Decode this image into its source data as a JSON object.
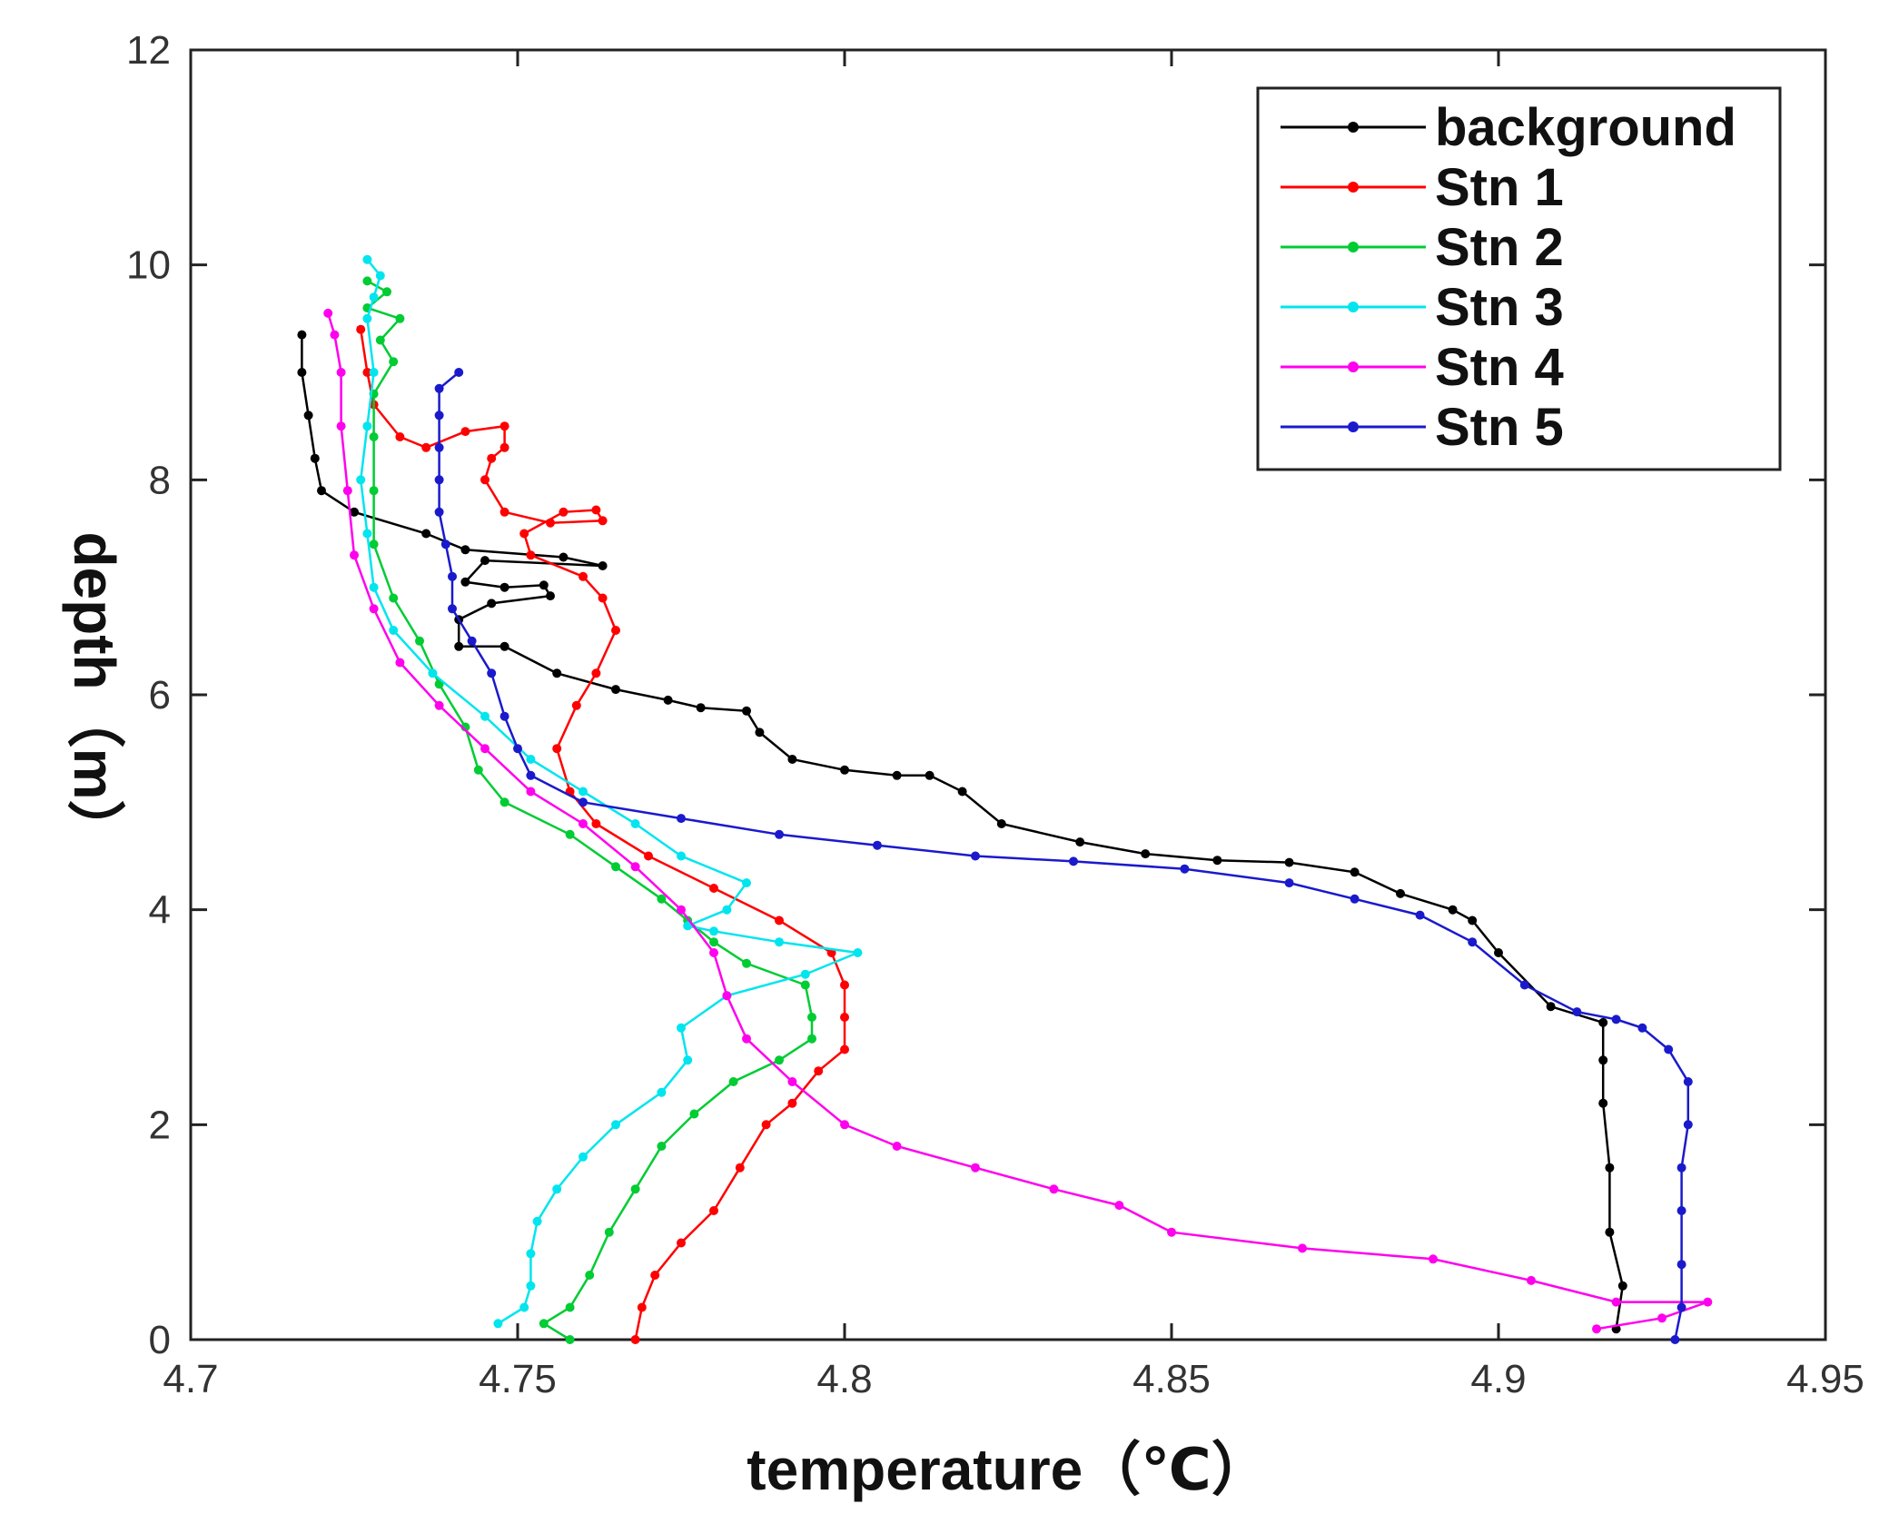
{
  "chart_data": {
    "type": "line",
    "xlabel": "temperature（℃）",
    "ylabel": "depth（m）",
    "xlim": [
      4.7,
      4.95
    ],
    "ylim": [
      0,
      12
    ],
    "xticks": [
      "4.7",
      "4.75",
      "4.8",
      "4.85",
      "4.9",
      "4.95"
    ],
    "yticks": [
      "0",
      "2",
      "4",
      "6",
      "8",
      "10",
      "12"
    ],
    "grid": false,
    "legend_position": "top-right",
    "series": [
      {
        "name": "background",
        "color": "#000000",
        "points": [
          [
            4.918,
            0.1
          ],
          [
            4.919,
            0.5
          ],
          [
            4.917,
            1.0
          ],
          [
            4.917,
            1.6
          ],
          [
            4.916,
            2.2
          ],
          [
            4.916,
            2.6
          ],
          [
            4.916,
            2.95
          ],
          [
            4.908,
            3.1
          ],
          [
            4.9,
            3.6
          ],
          [
            4.896,
            3.9
          ],
          [
            4.893,
            4.0
          ],
          [
            4.885,
            4.15
          ],
          [
            4.878,
            4.35
          ],
          [
            4.868,
            4.44
          ],
          [
            4.857,
            4.46
          ],
          [
            4.846,
            4.52
          ],
          [
            4.836,
            4.63
          ],
          [
            4.824,
            4.8
          ],
          [
            4.818,
            5.1
          ],
          [
            4.813,
            5.25
          ],
          [
            4.808,
            5.25
          ],
          [
            4.8,
            5.3
          ],
          [
            4.792,
            5.4
          ],
          [
            4.787,
            5.65
          ],
          [
            4.785,
            5.85
          ],
          [
            4.778,
            5.88
          ],
          [
            4.773,
            5.95
          ],
          [
            4.765,
            6.05
          ],
          [
            4.756,
            6.2
          ],
          [
            4.748,
            6.45
          ],
          [
            4.741,
            6.45
          ],
          [
            4.741,
            6.7
          ],
          [
            4.746,
            6.85
          ],
          [
            4.755,
            6.92
          ],
          [
            4.754,
            7.02
          ],
          [
            4.748,
            7.0
          ],
          [
            4.742,
            7.05
          ],
          [
            4.745,
            7.25
          ],
          [
            4.763,
            7.2
          ],
          [
            4.757,
            7.28
          ],
          [
            4.742,
            7.35
          ],
          [
            4.736,
            7.5
          ],
          [
            4.725,
            7.7
          ],
          [
            4.72,
            7.9
          ],
          [
            4.719,
            8.2
          ],
          [
            4.718,
            8.6
          ],
          [
            4.717,
            9.0
          ],
          [
            4.717,
            9.35
          ]
        ]
      },
      {
        "name": "Stn 1",
        "color": "#ff0000",
        "points": [
          [
            4.768,
            0.0
          ],
          [
            4.769,
            0.3
          ],
          [
            4.771,
            0.6
          ],
          [
            4.775,
            0.9
          ],
          [
            4.78,
            1.2
          ],
          [
            4.784,
            1.6
          ],
          [
            4.788,
            2.0
          ],
          [
            4.792,
            2.2
          ],
          [
            4.796,
            2.5
          ],
          [
            4.8,
            2.7
          ],
          [
            4.8,
            3.0
          ],
          [
            4.8,
            3.3
          ],
          [
            4.798,
            3.6
          ],
          [
            4.79,
            3.9
          ],
          [
            4.78,
            4.2
          ],
          [
            4.77,
            4.5
          ],
          [
            4.762,
            4.8
          ],
          [
            4.758,
            5.1
          ],
          [
            4.756,
            5.5
          ],
          [
            4.759,
            5.9
          ],
          [
            4.762,
            6.2
          ],
          [
            4.765,
            6.6
          ],
          [
            4.763,
            6.9
          ],
          [
            4.76,
            7.1
          ],
          [
            4.752,
            7.3
          ],
          [
            4.751,
            7.5
          ],
          [
            4.757,
            7.7
          ],
          [
            4.762,
            7.72
          ],
          [
            4.763,
            7.62
          ],
          [
            4.755,
            7.6
          ],
          [
            4.748,
            7.7
          ],
          [
            4.745,
            8.0
          ],
          [
            4.746,
            8.2
          ],
          [
            4.748,
            8.3
          ],
          [
            4.748,
            8.5
          ],
          [
            4.742,
            8.45
          ],
          [
            4.736,
            8.3
          ],
          [
            4.732,
            8.4
          ],
          [
            4.728,
            8.7
          ],
          [
            4.727,
            9.0
          ],
          [
            4.726,
            9.4
          ]
        ]
      },
      {
        "name": "Stn 2",
        "color": "#00cc33",
        "points": [
          [
            4.758,
            0.0
          ],
          [
            4.754,
            0.15
          ],
          [
            4.758,
            0.3
          ],
          [
            4.761,
            0.6
          ],
          [
            4.764,
            1.0
          ],
          [
            4.768,
            1.4
          ],
          [
            4.772,
            1.8
          ],
          [
            4.777,
            2.1
          ],
          [
            4.783,
            2.4
          ],
          [
            4.79,
            2.6
          ],
          [
            4.795,
            2.8
          ],
          [
            4.795,
            3.0
          ],
          [
            4.794,
            3.3
          ],
          [
            4.785,
            3.5
          ],
          [
            4.78,
            3.7
          ],
          [
            4.776,
            3.9
          ],
          [
            4.772,
            4.1
          ],
          [
            4.765,
            4.4
          ],
          [
            4.758,
            4.7
          ],
          [
            4.748,
            5.0
          ],
          [
            4.744,
            5.3
          ],
          [
            4.742,
            5.7
          ],
          [
            4.738,
            6.1
          ],
          [
            4.735,
            6.5
          ],
          [
            4.731,
            6.9
          ],
          [
            4.728,
            7.4
          ],
          [
            4.728,
            7.9
          ],
          [
            4.728,
            8.4
          ],
          [
            4.728,
            8.8
          ],
          [
            4.731,
            9.1
          ],
          [
            4.729,
            9.3
          ],
          [
            4.732,
            9.5
          ],
          [
            4.727,
            9.6
          ],
          [
            4.73,
            9.75
          ],
          [
            4.727,
            9.85
          ]
        ]
      },
      {
        "name": "Stn 3",
        "color": "#00e5ee",
        "points": [
          [
            4.747,
            0.15
          ],
          [
            4.751,
            0.3
          ],
          [
            4.752,
            0.5
          ],
          [
            4.752,
            0.8
          ],
          [
            4.753,
            1.1
          ],
          [
            4.756,
            1.4
          ],
          [
            4.76,
            1.7
          ],
          [
            4.765,
            2.0
          ],
          [
            4.772,
            2.3
          ],
          [
            4.776,
            2.6
          ],
          [
            4.775,
            2.9
          ],
          [
            4.782,
            3.2
          ],
          [
            4.794,
            3.4
          ],
          [
            4.802,
            3.6
          ],
          [
            4.79,
            3.7
          ],
          [
            4.78,
            3.8
          ],
          [
            4.776,
            3.85
          ],
          [
            4.782,
            4.0
          ],
          [
            4.785,
            4.25
          ],
          [
            4.775,
            4.5
          ],
          [
            4.768,
            4.8
          ],
          [
            4.76,
            5.1
          ],
          [
            4.752,
            5.4
          ],
          [
            4.745,
            5.8
          ],
          [
            4.737,
            6.2
          ],
          [
            4.731,
            6.6
          ],
          [
            4.728,
            7.0
          ],
          [
            4.727,
            7.5
          ],
          [
            4.726,
            8.0
          ],
          [
            4.727,
            8.5
          ],
          [
            4.728,
            9.0
          ],
          [
            4.727,
            9.5
          ],
          [
            4.728,
            9.7
          ],
          [
            4.729,
            9.9
          ],
          [
            4.727,
            10.05
          ]
        ]
      },
      {
        "name": "Stn 4",
        "color": "#ff00ee",
        "points": [
          [
            4.915,
            0.1
          ],
          [
            4.925,
            0.2
          ],
          [
            4.932,
            0.35
          ],
          [
            4.918,
            0.35
          ],
          [
            4.905,
            0.55
          ],
          [
            4.89,
            0.75
          ],
          [
            4.87,
            0.85
          ],
          [
            4.85,
            1.0
          ],
          [
            4.842,
            1.25
          ],
          [
            4.832,
            1.4
          ],
          [
            4.82,
            1.6
          ],
          [
            4.808,
            1.8
          ],
          [
            4.8,
            2.0
          ],
          [
            4.792,
            2.4
          ],
          [
            4.785,
            2.8
          ],
          [
            4.782,
            3.2
          ],
          [
            4.78,
            3.6
          ],
          [
            4.775,
            4.0
          ],
          [
            4.768,
            4.4
          ],
          [
            4.76,
            4.8
          ],
          [
            4.752,
            5.1
          ],
          [
            4.745,
            5.5
          ],
          [
            4.738,
            5.9
          ],
          [
            4.732,
            6.3
          ],
          [
            4.728,
            6.8
          ],
          [
            4.725,
            7.3
          ],
          [
            4.724,
            7.9
          ],
          [
            4.723,
            8.5
          ],
          [
            4.723,
            9.0
          ],
          [
            4.722,
            9.35
          ],
          [
            4.721,
            9.55
          ]
        ]
      },
      {
        "name": "Stn 5",
        "color": "#1a1acc",
        "points": [
          [
            4.927,
            0.0
          ],
          [
            4.928,
            0.3
          ],
          [
            4.928,
            0.7
          ],
          [
            4.928,
            1.2
          ],
          [
            4.928,
            1.6
          ],
          [
            4.929,
            2.0
          ],
          [
            4.929,
            2.4
          ],
          [
            4.926,
            2.7
          ],
          [
            4.922,
            2.9
          ],
          [
            4.918,
            2.98
          ],
          [
            4.912,
            3.05
          ],
          [
            4.904,
            3.3
          ],
          [
            4.896,
            3.7
          ],
          [
            4.888,
            3.95
          ],
          [
            4.878,
            4.1
          ],
          [
            4.868,
            4.25
          ],
          [
            4.852,
            4.38
          ],
          [
            4.835,
            4.45
          ],
          [
            4.82,
            4.5
          ],
          [
            4.805,
            4.6
          ],
          [
            4.79,
            4.7
          ],
          [
            4.775,
            4.85
          ],
          [
            4.76,
            5.0
          ],
          [
            4.752,
            5.25
          ],
          [
            4.75,
            5.5
          ],
          [
            4.748,
            5.8
          ],
          [
            4.746,
            6.2
          ],
          [
            4.743,
            6.5
          ],
          [
            4.74,
            6.8
          ],
          [
            4.74,
            7.1
          ],
          [
            4.739,
            7.4
          ],
          [
            4.738,
            7.7
          ],
          [
            4.738,
            8.0
          ],
          [
            4.738,
            8.3
          ],
          [
            4.738,
            8.6
          ],
          [
            4.738,
            8.85
          ],
          [
            4.741,
            9.0
          ]
        ]
      }
    ]
  }
}
